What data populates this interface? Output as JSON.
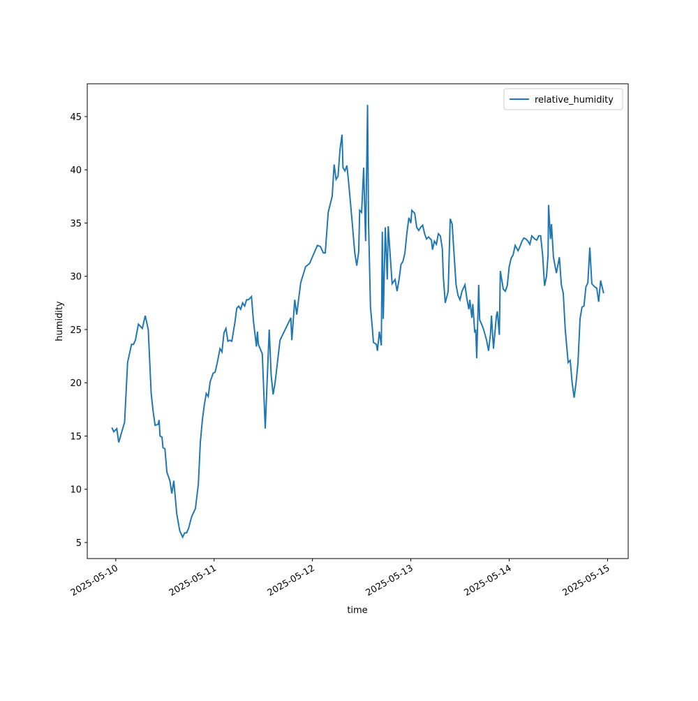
{
  "chart_data": {
    "type": "line",
    "x_label": "time",
    "y_label": "humidity",
    "x": [
      -0.04,
      -0.02,
      0.01,
      0.03,
      0.09,
      0.12,
      0.16,
      0.18,
      0.2,
      0.23,
      0.27,
      0.3,
      0.33,
      0.36,
      0.38,
      0.4,
      0.43,
      0.44,
      0.45,
      0.47,
      0.48,
      0.5,
      0.52,
      0.55,
      0.57,
      0.59,
      0.62,
      0.65,
      0.68,
      0.7,
      0.72,
      0.74,
      0.77,
      0.81,
      0.84,
      0.86,
      0.88,
      0.9,
      0.92,
      0.94,
      0.96,
      0.99,
      1.01,
      1.03,
      1.06,
      1.08,
      1.1,
      1.12,
      1.14,
      1.16,
      1.18,
      1.21,
      1.23,
      1.25,
      1.27,
      1.29,
      1.31,
      1.33,
      1.35,
      1.38,
      1.4,
      1.43,
      1.44,
      1.45,
      1.49,
      1.52,
      1.56,
      1.58,
      1.6,
      1.62,
      1.67,
      1.78,
      1.79,
      1.82,
      1.84,
      1.88,
      1.93,
      1.97,
      2.05,
      2.08,
      2.11,
      2.13,
      2.16,
      2.2,
      2.22,
      2.24,
      2.26,
      2.28,
      2.3,
      2.31,
      2.33,
      2.35,
      2.37,
      2.4,
      2.43,
      2.45,
      2.47,
      2.48,
      2.5,
      2.52,
      2.54,
      2.56,
      2.57,
      2.59,
      2.61,
      2.62,
      2.65,
      2.66,
      2.68,
      2.7,
      2.71,
      2.72,
      2.74,
      2.76,
      2.77,
      2.79,
      2.81,
      2.84,
      2.86,
      2.88,
      2.9,
      2.92,
      2.94,
      2.96,
      2.98,
      3.0,
      3.01,
      3.04,
      3.06,
      3.08,
      3.1,
      3.12,
      3.14,
      3.16,
      3.18,
      3.21,
      3.22,
      3.24,
      3.26,
      3.28,
      3.3,
      3.32,
      3.33,
      3.35,
      3.38,
      3.4,
      3.42,
      3.44,
      3.46,
      3.48,
      3.5,
      3.52,
      3.55,
      3.57,
      3.59,
      3.6,
      3.62,
      3.63,
      3.65,
      3.66,
      3.67,
      3.69,
      3.7,
      3.72,
      3.74,
      3.77,
      3.79,
      3.81,
      3.82,
      3.84,
      3.87,
      3.88,
      3.9,
      3.91,
      3.94,
      3.96,
      3.98,
      4.0,
      4.02,
      4.04,
      4.06,
      4.09,
      4.11,
      4.13,
      4.15,
      4.17,
      4.19,
      4.21,
      4.23,
      4.26,
      4.28,
      4.3,
      4.32,
      4.34,
      4.36,
      4.38,
      4.395,
      4.4,
      4.42,
      4.43,
      4.45,
      4.48,
      4.5,
      4.51,
      4.53,
      4.55,
      4.57,
      4.6,
      4.62,
      4.64,
      4.66,
      4.68,
      4.7,
      4.72,
      4.74,
      4.76,
      4.78,
      4.8,
      4.82,
      4.84,
      4.87,
      4.89,
      4.91,
      4.93,
      4.96
    ],
    "series": [
      {
        "name": "relative_humidity",
        "color": "#1f77b4",
        "values": [
          15.8,
          15.4,
          15.7,
          14.4,
          16.3,
          21.9,
          23.6,
          23.6,
          24.0,
          25.5,
          25.1,
          26.3,
          25.0,
          19.0,
          17.3,
          16.0,
          16.1,
          16.5,
          15.0,
          14.9,
          13.9,
          13.8,
          11.6,
          10.8,
          9.6,
          10.8,
          7.7,
          6.1,
          5.5,
          5.9,
          5.9,
          6.3,
          7.4,
          8.2,
          10.5,
          14.4,
          16.5,
          17.9,
          19.0,
          18.7,
          20.1,
          20.9,
          21.0,
          21.8,
          23.2,
          22.9,
          24.7,
          25.1,
          23.9,
          24.0,
          23.9,
          25.6,
          27.0,
          27.2,
          26.9,
          27.5,
          27.2,
          27.8,
          27.8,
          28.1,
          25.8,
          23.4,
          24.8,
          23.6,
          22.7,
          15.7,
          25.0,
          20.7,
          18.9,
          20.0,
          24.0,
          26.1,
          24.0,
          27.8,
          26.4,
          29.4,
          30.9,
          31.2,
          32.9,
          32.8,
          32.2,
          32.2,
          36.0,
          37.5,
          40.5,
          39.1,
          39.4,
          41.9,
          43.3,
          40.2,
          39.9,
          40.4,
          38.6,
          35.5,
          32.2,
          31.0,
          32.3,
          36.2,
          36.0,
          40.2,
          33.3,
          46.1,
          35.0,
          27.1,
          25.0,
          23.8,
          23.6,
          23.0,
          24.8,
          23.5,
          34.2,
          26.0,
          34.6,
          29.7,
          34.7,
          32.0,
          29.3,
          29.7,
          28.6,
          29.7,
          31.1,
          31.4,
          32.2,
          34.1,
          35.5,
          35.0,
          36.2,
          35.9,
          34.6,
          34.3,
          34.6,
          34.8,
          34.0,
          33.5,
          33.7,
          33.4,
          32.5,
          33.3,
          33.0,
          34.0,
          33.8,
          32.6,
          30.0,
          27.5,
          28.6,
          35.4,
          34.9,
          32.0,
          29.2,
          28.2,
          27.8,
          28.6,
          29.2,
          27.9,
          26.9,
          27.8,
          26.1,
          27.4,
          24.7,
          25.0,
          22.3,
          29.2,
          25.9,
          25.5,
          25.0,
          24.0,
          23.0,
          24.6,
          26.3,
          23.2,
          26.3,
          26.7,
          24.5,
          30.5,
          28.8,
          28.6,
          29.1,
          30.9,
          31.7,
          32.0,
          32.9,
          32.4,
          32.8,
          33.3,
          33.6,
          33.5,
          33.3,
          33.0,
          33.8,
          33.5,
          33.4,
          33.8,
          33.8,
          32.0,
          29.1,
          30.0,
          32.0,
          36.7,
          33.5,
          34.9,
          31.8,
          30.3,
          31.3,
          31.8,
          29.2,
          28.4,
          25.0,
          21.9,
          22.1,
          20.0,
          18.6,
          20.0,
          21.9,
          26.0,
          27.1,
          27.2,
          29.0,
          29.4,
          32.7,
          29.3,
          29.0,
          28.9,
          27.6,
          29.6,
          28.4
        ]
      }
    ],
    "xlim": [
      -0.29,
      5.21
    ],
    "xticks": [
      {
        "value": 0,
        "label": "2025-05-10"
      },
      {
        "value": 1,
        "label": "2025-05-11"
      },
      {
        "value": 2,
        "label": "2025-05-12"
      },
      {
        "value": 3,
        "label": "2025-05-13"
      },
      {
        "value": 4,
        "label": "2025-05-14"
      },
      {
        "value": 5,
        "label": "2025-05-15"
      }
    ],
    "ylim": [
      3.49,
      48.08
    ],
    "yticks": [
      5,
      10,
      15,
      20,
      25,
      30,
      35,
      40,
      45
    ],
    "grid": false,
    "legend": "upper right"
  }
}
